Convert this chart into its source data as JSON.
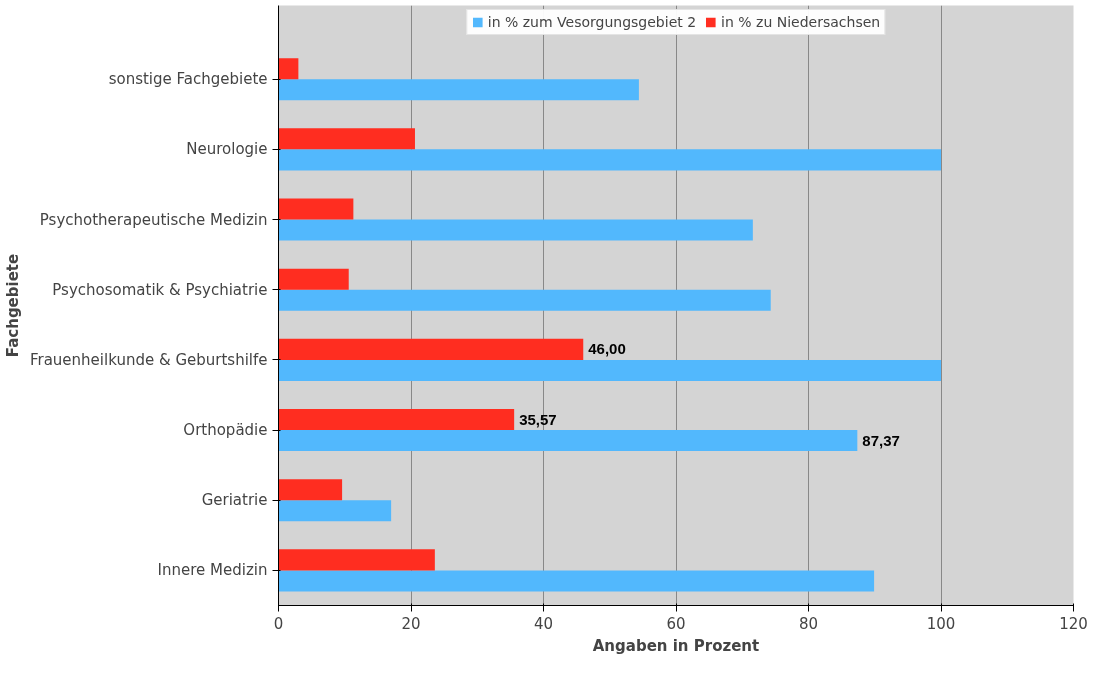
{
  "chart_data": {
    "type": "bar",
    "orientation": "horizontal",
    "xlabel": "Angaben in Prozent",
    "ylabel": "Fachgebiete",
    "categories": [
      "sonstige Fachgebiete",
      "Neurologie",
      "Psychotherapeutische Medizin",
      "Psychosomatik & Psychiatrie",
      "Frauenheilkunde & Geburtshilfe",
      "Orthopädie",
      "Geriatrie",
      "Innere Medizin"
    ],
    "series": [
      {
        "name": "in % zum Vesorgungsgebiet 2",
        "color": "#52b8fd",
        "values": [
          54.4,
          100,
          71.6,
          74.3,
          100,
          87.37,
          17.0,
          89.9
        ],
        "value_labels": [
          null,
          null,
          null,
          null,
          null,
          "87,37",
          null,
          null
        ]
      },
      {
        "name": "in % zu Niedersachsen",
        "color": "#ff2d20",
        "values": [
          3.0,
          20.6,
          11.3,
          10.6,
          46.0,
          35.57,
          9.6,
          23.6
        ],
        "value_labels": [
          null,
          null,
          null,
          null,
          "46,00",
          "35,57",
          null,
          null
        ]
      }
    ],
    "xlim": [
      0,
      120
    ],
    "xticks": [
      0,
      20,
      40,
      60,
      80,
      100,
      120
    ],
    "grid": "x",
    "legend": "top"
  }
}
